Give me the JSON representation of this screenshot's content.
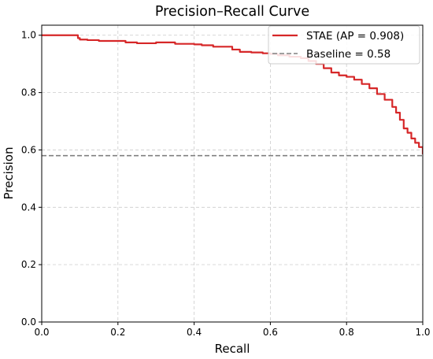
{
  "chart_data": {
    "type": "line",
    "title": "Precision–Recall Curve",
    "xlabel": "Recall",
    "ylabel": "Precision",
    "xlim": [
      0,
      1
    ],
    "ylim": [
      0,
      1.035
    ],
    "xticks": [
      0.0,
      0.2,
      0.4,
      0.6,
      0.8,
      1.0
    ],
    "yticks": [
      0.0,
      0.2,
      0.4,
      0.6,
      0.8,
      1.0
    ],
    "xtick_labels": [
      "0.0",
      "0.2",
      "0.4",
      "0.6",
      "0.8",
      "1.0"
    ],
    "ytick_labels": [
      "0.0",
      "0.2",
      "0.4",
      "0.6",
      "0.8",
      "1.0"
    ],
    "grid": true,
    "legend_position": "top-right",
    "series": [
      {
        "name": "STAE (AP = 0.908)",
        "color": "#d62728",
        "style": "solid",
        "x": [
          0.0,
          0.09,
          0.095,
          0.1,
          0.12,
          0.15,
          0.2,
          0.22,
          0.25,
          0.3,
          0.33,
          0.35,
          0.4,
          0.42,
          0.45,
          0.5,
          0.52,
          0.55,
          0.58,
          0.6,
          0.62,
          0.65,
          0.68,
          0.7,
          0.72,
          0.74,
          0.76,
          0.78,
          0.8,
          0.82,
          0.84,
          0.86,
          0.88,
          0.9,
          0.92,
          0.93,
          0.94,
          0.95,
          0.96,
          0.97,
          0.98,
          0.99,
          1.0
        ],
        "y": [
          1.0,
          1.0,
          0.99,
          0.985,
          0.983,
          0.98,
          0.98,
          0.975,
          0.972,
          0.975,
          0.975,
          0.97,
          0.968,
          0.965,
          0.96,
          0.95,
          0.942,
          0.94,
          0.937,
          0.935,
          0.93,
          0.925,
          0.92,
          0.91,
          0.9,
          0.885,
          0.87,
          0.86,
          0.855,
          0.845,
          0.83,
          0.815,
          0.795,
          0.775,
          0.75,
          0.73,
          0.705,
          0.675,
          0.66,
          0.64,
          0.625,
          0.61,
          0.585
        ]
      },
      {
        "name": "Baseline = 0.58",
        "color": "#808080",
        "style": "dashed",
        "x": [
          0.0,
          1.0
        ],
        "y": [
          0.58,
          0.58
        ]
      }
    ]
  }
}
